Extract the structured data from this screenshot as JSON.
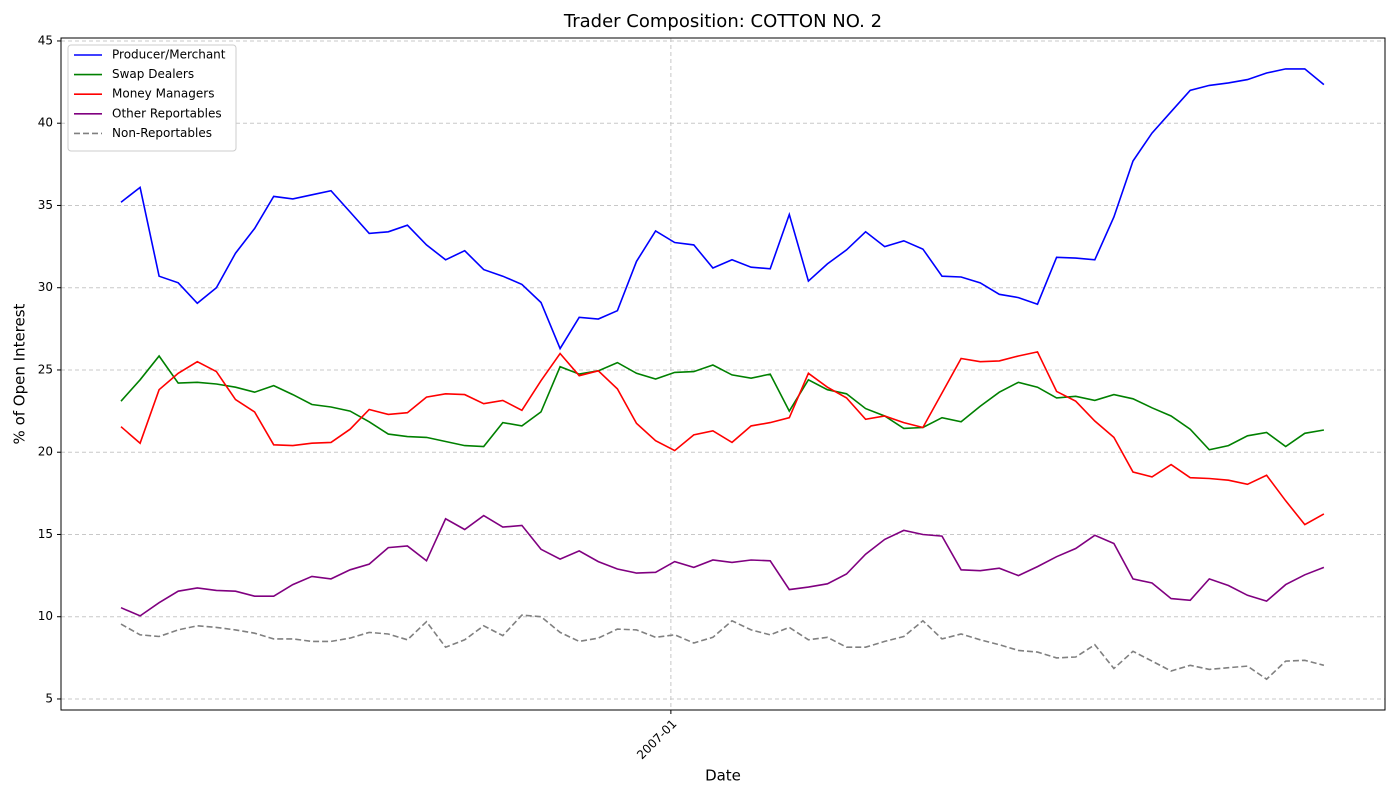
{
  "chart_data": {
    "type": "line",
    "title": "Trader Composition: COTTON NO. 2",
    "x_label": "Date",
    "y_label": "% of Open Interest",
    "categories": [
      null,
      null,
      null,
      null,
      null,
      null,
      null,
      null,
      null,
      null,
      null,
      null,
      null,
      null,
      null,
      null,
      null,
      null,
      null,
      null,
      null,
      null,
      null,
      null,
      null,
      null,
      null,
      null,
      null,
      null,
      null,
      null,
      null,
      null,
      null,
      null,
      null,
      null,
      null,
      null,
      null,
      null,
      null,
      null,
      null,
      null,
      null,
      null,
      null,
      null,
      null,
      null,
      null,
      null,
      null,
      null,
      null,
      null,
      null,
      null,
      null,
      null,
      null,
      null
    ],
    "xlim": [
      -3.14,
      66.2
    ],
    "xticks": [
      {
        "value": 28.8,
        "label": "2007-01"
      }
    ],
    "ylim": [
      4.33,
      45.18
    ],
    "yticks": [
      5,
      10,
      15,
      20,
      25,
      30,
      35,
      40,
      45
    ],
    "grid": true,
    "legend": "upper left",
    "series": [
      {
        "name": "Producer/Merchant",
        "color": "#0000ff",
        "dash": false,
        "values": [
          35.2,
          36.1,
          30.7,
          30.3,
          29.05,
          30.0,
          32.1,
          33.6,
          35.55,
          35.4,
          35.65,
          35.9,
          34.6,
          33.3,
          33.4,
          33.8,
          32.6,
          31.7,
          32.25,
          31.1,
          30.7,
          30.2,
          29.1,
          26.3,
          28.2,
          28.1,
          28.6,
          31.6,
          33.45,
          32.75,
          32.6,
          31.2,
          31.7,
          31.25,
          31.15,
          34.45,
          30.4,
          31.45,
          32.3,
          33.4,
          32.5,
          32.85,
          32.35,
          30.7,
          30.65,
          30.3,
          29.6,
          29.4,
          29.0,
          31.85,
          31.8,
          31.7,
          34.3,
          37.7,
          39.4,
          40.7,
          42.0,
          42.3,
          42.45,
          42.65,
          43.05,
          43.3,
          43.3,
          42.35
        ]
      },
      {
        "name": "Swap Dealers",
        "color": "#008000",
        "dash": false,
        "values": [
          23.1,
          24.4,
          25.85,
          24.2,
          24.25,
          24.15,
          23.95,
          23.65,
          24.05,
          23.5,
          22.9,
          22.75,
          22.5,
          21.85,
          21.1,
          20.95,
          20.9,
          20.65,
          20.4,
          20.35,
          21.8,
          21.6,
          22.45,
          25.2,
          24.75,
          24.95,
          25.45,
          24.8,
          24.45,
          24.85,
          24.9,
          25.3,
          24.7,
          24.5,
          24.75,
          22.5,
          24.4,
          23.8,
          23.55,
          22.65,
          22.2,
          21.45,
          21.5,
          22.1,
          21.85,
          22.8,
          23.65,
          24.25,
          23.95,
          23.3,
          23.4,
          23.15,
          23.5,
          23.25,
          22.7,
          22.2,
          21.4,
          20.15,
          20.4,
          21.0,
          21.2,
          20.35,
          21.15,
          21.35
        ]
      },
      {
        "name": "Money Managers",
        "color": "#ff0000",
        "dash": false,
        "values": [
          21.55,
          20.55,
          23.8,
          24.8,
          25.5,
          24.9,
          23.2,
          22.45,
          20.45,
          20.4,
          20.55,
          20.6,
          21.4,
          22.6,
          22.3,
          22.4,
          23.35,
          23.55,
          23.5,
          22.95,
          23.15,
          22.55,
          24.35,
          26.0,
          24.65,
          24.95,
          23.85,
          21.75,
          20.7,
          20.1,
          21.05,
          21.3,
          20.6,
          21.6,
          21.8,
          22.1,
          24.8,
          23.95,
          23.3,
          22.0,
          22.2,
          21.8,
          21.5,
          23.6,
          25.7,
          25.5,
          25.55,
          25.85,
          26.1,
          23.7,
          23.1,
          21.9,
          20.9,
          18.8,
          18.5,
          19.25,
          18.45,
          18.4,
          18.3,
          18.05,
          18.6,
          17.05,
          15.6,
          16.25
        ]
      },
      {
        "name": "Other Reportables",
        "color": "#800080",
        "dash": false,
        "values": [
          10.55,
          10.05,
          10.85,
          11.55,
          11.75,
          11.6,
          11.55,
          11.25,
          11.25,
          11.95,
          12.45,
          12.3,
          12.85,
          13.2,
          14.2,
          14.3,
          13.4,
          15.95,
          15.3,
          16.15,
          15.45,
          15.55,
          14.1,
          13.5,
          14.0,
          13.35,
          12.9,
          12.65,
          12.7,
          13.35,
          13.0,
          13.45,
          13.3,
          13.45,
          13.4,
          11.65,
          11.8,
          12.0,
          12.6,
          13.8,
          14.7,
          15.25,
          15.0,
          14.9,
          12.85,
          12.8,
          12.95,
          12.5,
          13.05,
          13.65,
          14.15,
          14.95,
          14.45,
          12.3,
          12.05,
          11.1,
          11.0,
          12.3,
          11.9,
          11.3,
          10.95,
          11.95,
          12.55,
          13.0
        ]
      },
      {
        "name": "Non-Reportables",
        "color": "#808080",
        "dash": true,
        "values": [
          9.55,
          8.9,
          8.8,
          9.2,
          9.45,
          9.35,
          9.2,
          9.0,
          8.65,
          8.65,
          8.5,
          8.5,
          8.7,
          9.05,
          8.95,
          8.6,
          9.7,
          8.15,
          8.6,
          9.45,
          8.85,
          10.1,
          10.0,
          9.05,
          8.5,
          8.7,
          9.25,
          9.2,
          8.75,
          8.9,
          8.4,
          8.75,
          9.75,
          9.2,
          8.9,
          9.35,
          8.6,
          8.75,
          8.15,
          8.15,
          8.5,
          8.8,
          9.75,
          8.65,
          8.95,
          8.6,
          8.3,
          7.95,
          7.85,
          7.5,
          7.55,
          8.3,
          6.85,
          7.9,
          7.3,
          6.7,
          7.05,
          6.8,
          6.9,
          7.0,
          6.2,
          7.3,
          7.35,
          7.05
        ]
      }
    ]
  }
}
